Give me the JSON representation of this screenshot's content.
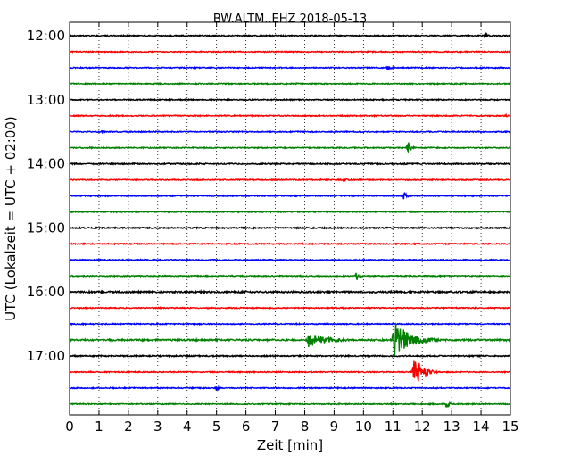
{
  "chart_data": {
    "type": "line",
    "title": "BW.ALTM..EHZ 2018-05-13",
    "xlabel": "Zeit  [min]",
    "ylabel": "UTC (Lokalzeit = UTC + 02:00)",
    "xlim": [
      0,
      15
    ],
    "xticks": [
      "0",
      "1",
      "2",
      "3",
      "4",
      "5",
      "6",
      "7",
      "8",
      "9",
      "10",
      "11",
      "12",
      "13",
      "14",
      "15"
    ],
    "yticks": [
      {
        "label": "12:00",
        "trace": 0
      },
      {
        "label": "13:00",
        "trace": 4
      },
      {
        "label": "14:00",
        "trace": 8
      },
      {
        "label": "15:00",
        "trace": 12
      },
      {
        "label": "16:00",
        "trace": 16
      },
      {
        "label": "17:00",
        "trace": 20
      }
    ],
    "grid": "vertical dotted at each minute",
    "colors": [
      "#000000",
      "#ff0000",
      "#0000ff",
      "#008000"
    ],
    "traces": [
      {
        "start": "12:00",
        "noise": 0.6,
        "events": [
          {
            "t": 14.1,
            "amp": 3.5,
            "dur": 0.5
          }
        ]
      },
      {
        "start": "12:15",
        "noise": 0.6,
        "events": []
      },
      {
        "start": "12:30",
        "noise": 0.6,
        "events": [
          {
            "t": 10.8,
            "amp": 3.5,
            "dur": 0.5
          }
        ]
      },
      {
        "start": "12:45",
        "noise": 0.6,
        "events": []
      },
      {
        "start": "13:00",
        "noise": 0.6,
        "events": []
      },
      {
        "start": "13:15",
        "noise": 0.6,
        "events": [
          {
            "t": 14.8,
            "amp": 2.5,
            "dur": 0.3
          }
        ]
      },
      {
        "start": "13:30",
        "noise": 0.6,
        "events": [
          {
            "t": 1.1,
            "amp": 2,
            "dur": 0.3
          }
        ]
      },
      {
        "start": "13:45",
        "noise": 0.6,
        "events": [
          {
            "t": 11.5,
            "amp": 9,
            "dur": 0.35
          }
        ]
      },
      {
        "start": "14:00",
        "noise": 0.7,
        "events": []
      },
      {
        "start": "14:15",
        "noise": 0.6,
        "events": [
          {
            "t": 9.3,
            "amp": 3,
            "dur": 0.4
          }
        ]
      },
      {
        "start": "14:30",
        "noise": 0.6,
        "events": [
          {
            "t": 11.35,
            "amp": 7,
            "dur": 0.35
          }
        ]
      },
      {
        "start": "14:45",
        "noise": 0.6,
        "events": []
      },
      {
        "start": "15:00",
        "noise": 0.7,
        "events": []
      },
      {
        "start": "15:15",
        "noise": 0.6,
        "events": []
      },
      {
        "start": "15:30",
        "noise": 0.6,
        "events": []
      },
      {
        "start": "15:45",
        "noise": 0.6,
        "events": [
          {
            "t": 9.75,
            "amp": 6,
            "dur": 0.3
          }
        ]
      },
      {
        "start": "16:00",
        "noise": 0.9,
        "events": []
      },
      {
        "start": "16:15",
        "noise": 0.6,
        "events": []
      },
      {
        "start": "16:30",
        "noise": 0.6,
        "events": []
      },
      {
        "start": "16:45",
        "noise": 0.9,
        "events": [
          {
            "t": 8.1,
            "amp": 10,
            "dur": 1.8
          },
          {
            "t": 11.0,
            "amp": 24,
            "dur": 1.6
          }
        ]
      },
      {
        "start": "17:00",
        "noise": 0.7,
        "events": []
      },
      {
        "start": "17:15",
        "noise": 0.6,
        "events": [
          {
            "t": 11.7,
            "amp": 24,
            "dur": 0.8
          }
        ]
      },
      {
        "start": "17:30",
        "noise": 0.6,
        "events": [
          {
            "t": 5.0,
            "amp": 3.5,
            "dur": 0.25
          }
        ]
      },
      {
        "start": "17:45",
        "noise": 0.6,
        "events": [
          {
            "t": 12.8,
            "amp": 7,
            "dur": 0.35
          }
        ]
      }
    ]
  }
}
